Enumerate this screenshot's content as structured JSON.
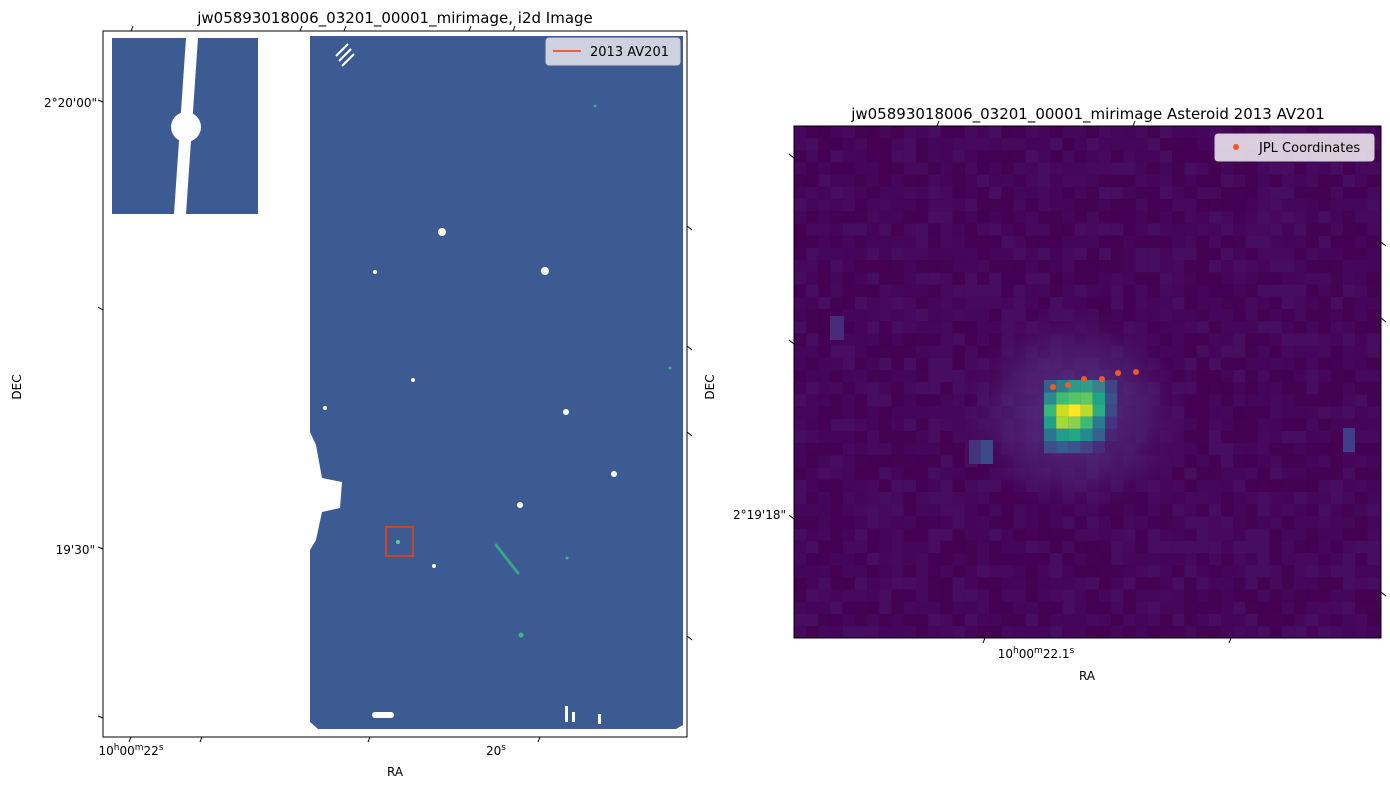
{
  "figure": {
    "left_title": "jw05893018006_03201_00001_mirimage,  i2d Image",
    "right_title": "jw05893018006_03201_00001_mirimage Asteroid 2013 AV201"
  },
  "chart_data": [
    {
      "type": "heatmap",
      "title": "jw05893018006_03201_00001_mirimage,  i2d Image",
      "xlabel": "RA",
      "ylabel": "DEC",
      "x_tick_labels": [
        {
          "text": "10h00m22s",
          "value": "10h00m22s"
        },
        {
          "text": "20s",
          "value": "10h00m20s"
        }
      ],
      "y_tick_labels": [
        {
          "text": "2°20'00\"",
          "value": "2°20'00\""
        },
        {
          "text": "19'30\"",
          "value": "2°19'30\""
        }
      ],
      "legend": {
        "placement": "top-right",
        "entries": [
          {
            "name": "2013 AV201",
            "color": "#e8603c",
            "kind": "line"
          }
        ]
      },
      "annotation": {
        "kind": "box",
        "label": "2013 AV201",
        "color": "#c8452a"
      },
      "colormap": "viridis",
      "background_color": "#3b5b92",
      "grid": false
    },
    {
      "type": "heatmap",
      "title": "jw05893018006_03201_00001_mirimage Asteroid 2013 AV201",
      "xlabel": "RA",
      "ylabel": "DEC",
      "x_tick_labels": [
        {
          "text": "10h00m22.1s",
          "value": "10h00m22.1s"
        }
      ],
      "y_tick_labels": [
        {
          "text": "2°19'18\"",
          "value": "2°19'18\""
        }
      ],
      "legend": {
        "placement": "top-right",
        "entries": [
          {
            "name": "JPL Coordinates",
            "color": "#f05a28",
            "kind": "marker"
          }
        ]
      },
      "colormap": "viridis",
      "grid": false
    }
  ]
}
